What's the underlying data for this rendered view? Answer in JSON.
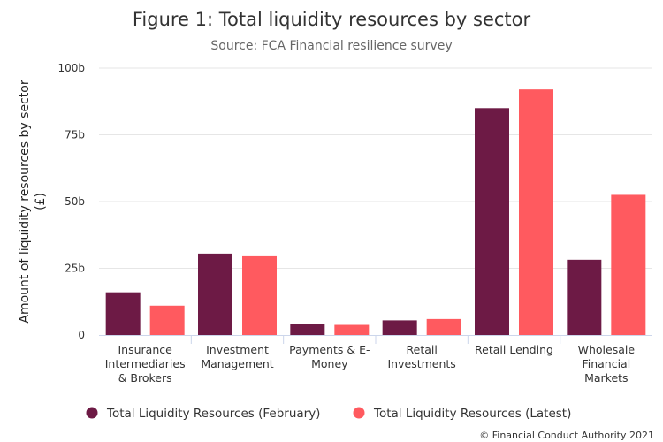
{
  "chart_data": {
    "type": "bar",
    "title": "Figure 1: Total liquidity resources by sector",
    "subtitle": "Source: FCA Financial resilience survey",
    "xlabel": "",
    "ylabel": "Amount of liquidity resources by sector",
    "ylabel_unit": "(£)",
    "ylim": [
      0,
      100
    ],
    "yticks": [
      {
        "value": 0,
        "label": "0"
      },
      {
        "value": 25,
        "label": "25b"
      },
      {
        "value": 50,
        "label": "50b"
      },
      {
        "value": 75,
        "label": "75b"
      },
      {
        "value": 100,
        "label": "100b"
      }
    ],
    "grid": true,
    "categories": [
      [
        "Insurance",
        "Intermediaries",
        "& Brokers"
      ],
      [
        "Investment",
        "Management"
      ],
      [
        "Payments & E-",
        "Money"
      ],
      [
        "Retail",
        "Investments"
      ],
      [
        "Retail Lending"
      ],
      [
        "Wholesale",
        "Financial",
        "Markets"
      ]
    ],
    "series": [
      {
        "name": "Total Liquidity Resources (February)",
        "color": "#6d1a45",
        "values": [
          16,
          30.5,
          4.2,
          5.5,
          85,
          28.2
        ]
      },
      {
        "name": "Total Liquidity Resources (Latest)",
        "color": "#ff5a5f",
        "values": [
          11,
          29.5,
          3.8,
          6,
          92,
          52.5
        ]
      }
    ],
    "legend_position": "bottom",
    "credits": "© Financial Conduct Authority 2021"
  }
}
